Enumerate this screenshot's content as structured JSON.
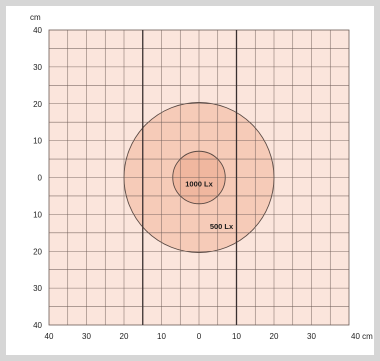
{
  "diagram": {
    "x_unit": "cm",
    "y_unit": "cm",
    "x_range": [
      -40,
      40
    ],
    "y_range": [
      -40,
      40
    ],
    "x_tick_labels": [
      "40",
      "30",
      "20",
      "10",
      "0",
      "10",
      "20",
      "30",
      "40 cm"
    ],
    "y_tick_labels": [
      "40",
      "30",
      "20",
      "10",
      "0",
      "10",
      "20",
      "30",
      "40"
    ],
    "zones": [
      {
        "label": "1000 Lx",
        "radius_cm": 7
      },
      {
        "label": "500 Lx",
        "radius_cm": 20
      }
    ],
    "marker_lines_x_cm": [
      -15,
      10
    ],
    "colors": {
      "grid_fill": "#fbe5dc",
      "grid_line": "#6b5b55",
      "zone_outer_fill": "#f6cbb8",
      "zone_inner_fill": "#f0b79f",
      "zone_stroke": "#5a4a44"
    }
  }
}
